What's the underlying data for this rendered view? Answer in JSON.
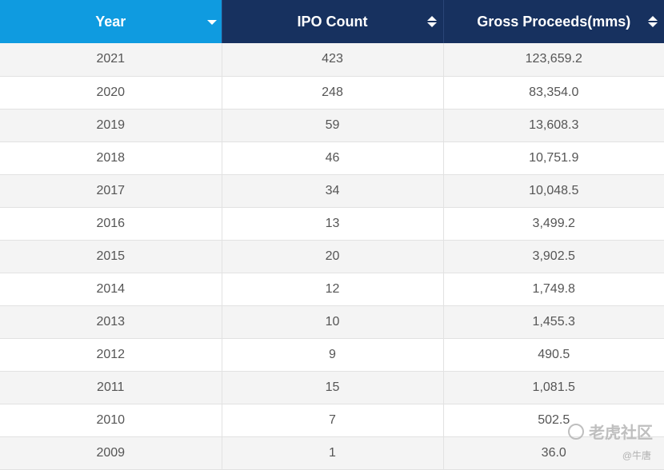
{
  "table": {
    "headers": {
      "year": "Year",
      "ipo_count": "IPO Count",
      "gross_proceeds": "Gross Proceeds(mms)"
    },
    "header_colors": {
      "year": "#0f9be0",
      "others": "#17315f"
    },
    "sort_icons": {
      "year": "caret-down-icon",
      "ipo_count": "sort-icon",
      "gross_proceeds": "sort-icon"
    },
    "rows": [
      {
        "year": "2021",
        "ipo_count": "423",
        "gross_proceeds": "123,659.2"
      },
      {
        "year": "2020",
        "ipo_count": "248",
        "gross_proceeds": "83,354.0"
      },
      {
        "year": "2019",
        "ipo_count": "59",
        "gross_proceeds": "13,608.3"
      },
      {
        "year": "2018",
        "ipo_count": "46",
        "gross_proceeds": "10,751.9"
      },
      {
        "year": "2017",
        "ipo_count": "34",
        "gross_proceeds": "10,048.5"
      },
      {
        "year": "2016",
        "ipo_count": "13",
        "gross_proceeds": "3,499.2"
      },
      {
        "year": "2015",
        "ipo_count": "20",
        "gross_proceeds": "3,902.5"
      },
      {
        "year": "2014",
        "ipo_count": "12",
        "gross_proceeds": "1,749.8"
      },
      {
        "year": "2013",
        "ipo_count": "10",
        "gross_proceeds": "1,455.3"
      },
      {
        "year": "2012",
        "ipo_count": "9",
        "gross_proceeds": "490.5"
      },
      {
        "year": "2011",
        "ipo_count": "15",
        "gross_proceeds": "1,081.5"
      },
      {
        "year": "2010",
        "ipo_count": "7",
        "gross_proceeds": "502.5"
      },
      {
        "year": "2009",
        "ipo_count": "1",
        "gross_proceeds": "36.0"
      }
    ]
  },
  "watermark": {
    "text": "老虎社区",
    "sub": "@牛唐"
  }
}
